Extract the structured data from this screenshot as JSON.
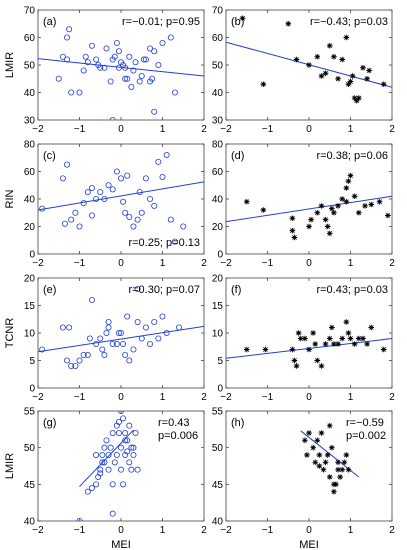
{
  "chart_data": [
    {
      "type": "scatter",
      "panel": "(a)",
      "ylabel": "LMIR",
      "xlabel": "",
      "xlim": [
        -2,
        2
      ],
      "ylim": [
        30,
        70
      ],
      "xticks": [
        -2,
        -1,
        0,
        1,
        2
      ],
      "yticks": [
        30,
        40,
        50,
        60,
        70
      ],
      "show_xticklabels": true,
      "marker": "circle",
      "stat_lines": [
        "r=−0.01; p=0.95"
      ],
      "stat_pos": "top-right",
      "fit": {
        "x1": -2,
        "y1": 52.3,
        "x2": 2,
        "y2": 46.0
      },
      "points": [
        [
          -1.4,
          53
        ],
        [
          -1.3,
          60
        ],
        [
          -1.25,
          63
        ],
        [
          -1.2,
          40
        ],
        [
          -1.0,
          40
        ],
        [
          -0.9,
          48
        ],
        [
          -0.85,
          53
        ],
        [
          -0.7,
          57
        ],
        [
          -0.6,
          52
        ],
        [
          -0.5,
          49
        ],
        [
          -0.4,
          49
        ],
        [
          -0.35,
          56
        ],
        [
          -0.25,
          44
        ],
        [
          -0.2,
          52
        ],
        [
          -0.1,
          58
        ],
        [
          -0.05,
          55
        ],
        [
          0.0,
          51
        ],
        [
          0.05,
          50
        ],
        [
          0.1,
          49
        ],
        [
          0.15,
          45
        ],
        [
          0.2,
          53
        ],
        [
          0.3,
          48
        ],
        [
          0.45,
          44
        ],
        [
          0.5,
          46
        ],
        [
          0.55,
          52
        ],
        [
          0.7,
          56
        ],
        [
          0.8,
          55
        ],
        [
          0.9,
          50
        ],
        [
          1.0,
          58
        ],
        [
          1.3,
          40
        ],
        [
          -1.5,
          45
        ],
        [
          -0.8,
          51
        ],
        [
          -0.15,
          53
        ],
        [
          0.35,
          51
        ],
        [
          0.6,
          52
        ],
        [
          0.75,
          45
        ],
        [
          0.25,
          42
        ],
        [
          -1.3,
          52
        ],
        [
          -0.05,
          49
        ],
        [
          0.8,
          33
        ],
        [
          1.2,
          60
        ],
        [
          0.7,
          44
        ],
        [
          0.1,
          45
        ],
        [
          -0.2,
          30
        ],
        [
          -0.55,
          50
        ]
      ]
    },
    {
      "type": "scatter",
      "panel": "(b)",
      "ylabel": "",
      "xlabel": "",
      "xlim": [
        -2,
        2
      ],
      "ylim": [
        30,
        70
      ],
      "xticks": [
        -2,
        -1,
        0,
        1,
        2
      ],
      "yticks": [
        30,
        40,
        50,
        60,
        70
      ],
      "show_xticklabels": true,
      "marker": "star",
      "stat_lines": [
        "r=−0.43; p=0.03"
      ],
      "stat_pos": "top-right",
      "fit": {
        "x1": -2,
        "y1": 58.3,
        "x2": 2,
        "y2": 41.9
      },
      "points": [
        [
          -1.6,
          67
        ],
        [
          -1.1,
          43
        ],
        [
          -0.5,
          65
        ],
        [
          0.0,
          50
        ],
        [
          0.2,
          53
        ],
        [
          0.3,
          46
        ],
        [
          0.5,
          57
        ],
        [
          0.6,
          53
        ],
        [
          0.7,
          45
        ],
        [
          0.8,
          52
        ],
        [
          0.9,
          60
        ],
        [
          1.0,
          44
        ],
        [
          1.05,
          46
        ],
        [
          1.1,
          38
        ],
        [
          1.2,
          38
        ],
        [
          1.3,
          49
        ],
        [
          1.4,
          45
        ],
        [
          1.8,
          43
        ],
        [
          0.4,
          47
        ],
        [
          -0.3,
          52
        ],
        [
          0.95,
          43
        ],
        [
          1.15,
          37
        ],
        [
          1.45,
          48
        ]
      ]
    },
    {
      "type": "scatter",
      "panel": "(c)",
      "ylabel": "RIN",
      "xlabel": "",
      "xlim": [
        -2,
        2
      ],
      "ylim": [
        0,
        80
      ],
      "xticks": [
        -2,
        -1,
        0,
        1,
        2
      ],
      "yticks": [
        0,
        20,
        40,
        60,
        80
      ],
      "show_xticklabels": true,
      "marker": "circle",
      "stat_lines": [
        "r=0.25; p=0.13"
      ],
      "stat_pos": "bottom-right",
      "fit": {
        "x1": -2,
        "y1": 32.0,
        "x2": 2,
        "y2": 52.5
      },
      "points": [
        [
          -1.9,
          33
        ],
        [
          -1.4,
          55
        ],
        [
          -1.3,
          65
        ],
        [
          -1.2,
          25
        ],
        [
          -1.1,
          30
        ],
        [
          -1.0,
          20
        ],
        [
          -0.9,
          37
        ],
        [
          -0.8,
          45
        ],
        [
          -0.7,
          48
        ],
        [
          -0.6,
          40
        ],
        [
          -0.5,
          45
        ],
        [
          -0.4,
          40
        ],
        [
          -0.3,
          50
        ],
        [
          -0.2,
          47
        ],
        [
          -0.1,
          60
        ],
        [
          0.0,
          55
        ],
        [
          0.05,
          38
        ],
        [
          0.1,
          30
        ],
        [
          0.2,
          27
        ],
        [
          0.3,
          20
        ],
        [
          0.4,
          25
        ],
        [
          0.5,
          30
        ],
        [
          0.6,
          55
        ],
        [
          0.7,
          40
        ],
        [
          0.8,
          35
        ],
        [
          0.9,
          67
        ],
        [
          1.0,
          56
        ],
        [
          1.1,
          72
        ],
        [
          1.2,
          25
        ],
        [
          1.3,
          9
        ],
        [
          -0.7,
          28
        ],
        [
          0.45,
          45
        ],
        [
          -1.35,
          22
        ],
        [
          0.15,
          57
        ],
        [
          1.5,
          20
        ]
      ]
    },
    {
      "type": "scatter",
      "panel": "(d)",
      "ylabel": "",
      "xlabel": "",
      "xlim": [
        -2,
        2
      ],
      "ylim": [
        0,
        80
      ],
      "xticks": [
        -2,
        -1,
        0,
        1,
        2
      ],
      "yticks": [
        0,
        20,
        40,
        60,
        80
      ],
      "show_xticklabels": true,
      "marker": "star",
      "stat_lines": [
        "r=0.38; p=0.06"
      ],
      "stat_pos": "top-right",
      "fit": {
        "x1": -2,
        "y1": 23.5,
        "x2": 2,
        "y2": 42.0
      },
      "points": [
        [
          -1.5,
          38
        ],
        [
          -1.1,
          32
        ],
        [
          -0.4,
          26
        ],
        [
          -0.4,
          17
        ],
        [
          -0.35,
          12
        ],
        [
          0.0,
          20
        ],
        [
          0.05,
          25
        ],
        [
          0.2,
          30
        ],
        [
          0.3,
          35
        ],
        [
          0.4,
          25
        ],
        [
          0.45,
          20
        ],
        [
          0.5,
          15
        ],
        [
          0.55,
          33
        ],
        [
          0.6,
          30
        ],
        [
          0.7,
          35
        ],
        [
          0.8,
          40
        ],
        [
          0.9,
          38
        ],
        [
          1.0,
          57
        ],
        [
          1.1,
          42
        ],
        [
          1.2,
          30
        ],
        [
          1.35,
          35
        ],
        [
          1.5,
          36
        ],
        [
          1.7,
          38
        ],
        [
          1.9,
          28
        ],
        [
          0.9,
          48
        ],
        [
          0.95,
          53
        ]
      ]
    },
    {
      "type": "scatter",
      "panel": "(e)",
      "ylabel": "TCNR",
      "xlabel": "",
      "xlim": [
        -2,
        2
      ],
      "ylim": [
        0,
        20
      ],
      "xticks": [
        -2,
        -1,
        0,
        1,
        2
      ],
      "yticks": [
        0,
        5,
        10,
        15,
        20
      ],
      "show_xticklabels": true,
      "marker": "circle",
      "stat_lines": [
        "r=0.30; p=0.07"
      ],
      "stat_pos": "top-right",
      "fit": {
        "x1": -2,
        "y1": 6.6,
        "x2": 2,
        "y2": 11.2
      },
      "points": [
        [
          -1.9,
          7
        ],
        [
          -1.4,
          11
        ],
        [
          -1.3,
          5
        ],
        [
          -1.25,
          11
        ],
        [
          -1.2,
          4
        ],
        [
          -1.1,
          4
        ],
        [
          -1.0,
          5
        ],
        [
          -0.9,
          6
        ],
        [
          -0.8,
          6
        ],
        [
          -0.7,
          16
        ],
        [
          -0.6,
          8
        ],
        [
          -0.5,
          9
        ],
        [
          -0.45,
          7
        ],
        [
          -0.4,
          6
        ],
        [
          -0.35,
          10
        ],
        [
          -0.3,
          11
        ],
        [
          -0.2,
          8
        ],
        [
          -0.1,
          8
        ],
        [
          -0.05,
          10
        ],
        [
          0.0,
          10
        ],
        [
          0.05,
          8
        ],
        [
          0.1,
          6
        ],
        [
          0.2,
          5
        ],
        [
          0.3,
          7
        ],
        [
          0.4,
          12
        ],
        [
          0.5,
          9
        ],
        [
          0.6,
          11
        ],
        [
          0.7,
          8
        ],
        [
          0.8,
          12
        ],
        [
          0.9,
          9
        ],
        [
          1.0,
          13
        ],
        [
          1.1,
          10
        ],
        [
          -0.3,
          12
        ],
        [
          0.4,
          18
        ],
        [
          -0.75,
          9
        ],
        [
          0.15,
          13
        ],
        [
          1.4,
          11
        ]
      ]
    },
    {
      "type": "scatter",
      "panel": "(f)",
      "ylabel": "",
      "xlabel": "",
      "xlim": [
        -2,
        2
      ],
      "ylim": [
        0,
        20
      ],
      "xticks": [
        -2,
        -1,
        0,
        1,
        2
      ],
      "yticks": [
        0,
        5,
        10,
        15,
        20
      ],
      "show_xticklabels": true,
      "marker": "star",
      "stat_lines": [
        "r=0.43; p=0.03"
      ],
      "stat_pos": "top-right",
      "fit": {
        "x1": -2,
        "y1": 5.4,
        "x2": 2,
        "y2": 9.0
      },
      "points": [
        [
          -1.5,
          7
        ],
        [
          -1.05,
          7
        ],
        [
          -0.4,
          7
        ],
        [
          -0.35,
          5
        ],
        [
          -0.3,
          4
        ],
        [
          -0.25,
          10
        ],
        [
          -0.2,
          9
        ],
        [
          -0.1,
          9
        ],
        [
          0.0,
          7
        ],
        [
          0.1,
          10
        ],
        [
          0.15,
          8
        ],
        [
          0.2,
          5
        ],
        [
          0.3,
          4
        ],
        [
          0.4,
          8
        ],
        [
          0.5,
          9
        ],
        [
          0.6,
          8
        ],
        [
          0.7,
          8
        ],
        [
          0.8,
          9
        ],
        [
          0.9,
          12
        ],
        [
          1.0,
          9
        ],
        [
          1.1,
          8
        ],
        [
          1.2,
          9
        ],
        [
          1.3,
          9
        ],
        [
          1.4,
          8
        ],
        [
          1.5,
          11
        ],
        [
          1.8,
          7
        ],
        [
          0.95,
          10
        ],
        [
          0.55,
          11
        ]
      ]
    },
    {
      "type": "scatter",
      "panel": "(g)",
      "ylabel": "LMIR",
      "xlabel": "MEI",
      "xlim": [
        -2,
        2
      ],
      "ylim": [
        40,
        55
      ],
      "xticks": [
        -2,
        -1,
        0,
        1,
        2
      ],
      "yticks": [
        40,
        45,
        50,
        55
      ],
      "show_xticklabels": true,
      "marker": "circle",
      "stat_lines": [
        "r=0.43",
        "p=0.006"
      ],
      "stat_pos": "top-right",
      "fit": {
        "x1": -1.0,
        "y1": 44.7,
        "x2": 0.3,
        "y2": 52.4
      },
      "points": [
        [
          -1.0,
          40
        ],
        [
          -0.8,
          44
        ],
        [
          -0.7,
          44.5
        ],
        [
          -0.6,
          45
        ],
        [
          -0.55,
          46
        ],
        [
          -0.5,
          46.5
        ],
        [
          -0.5,
          47
        ],
        [
          -0.45,
          48
        ],
        [
          -0.4,
          48
        ],
        [
          -0.4,
          50
        ],
        [
          -0.35,
          51
        ],
        [
          -0.3,
          49
        ],
        [
          -0.3,
          47
        ],
        [
          -0.25,
          50
        ],
        [
          -0.2,
          52
        ],
        [
          -0.2,
          45
        ],
        [
          -0.15,
          48
        ],
        [
          -0.1,
          53
        ],
        [
          -0.1,
          49
        ],
        [
          -0.05,
          52
        ],
        [
          0.0,
          50
        ],
        [
          0.0,
          47
        ],
        [
          0.05,
          54
        ],
        [
          0.05,
          45
        ],
        [
          0.1,
          51
        ],
        [
          0.1,
          49
        ],
        [
          0.15,
          51
        ],
        [
          0.2,
          48
        ],
        [
          0.2,
          53
        ],
        [
          0.25,
          47
        ],
        [
          0.3,
          49
        ],
        [
          0.3,
          50
        ],
        [
          0.35,
          52
        ],
        [
          0.4,
          47
        ],
        [
          -0.6,
          49
        ],
        [
          -0.2,
          41
        ],
        [
          0.0,
          55
        ],
        [
          -0.05,
          53.5
        ],
        [
          0.1,
          52
        ],
        [
          0.25,
          50
        ],
        [
          -0.45,
          49
        ],
        [
          0.15,
          49.5
        ]
      ]
    },
    {
      "type": "scatter",
      "panel": "(h)",
      "ylabel": "",
      "xlabel": "MEI",
      "xlim": [
        -2,
        2
      ],
      "ylim": [
        40,
        55
      ],
      "xticks": [
        -2,
        -1,
        0,
        1,
        2
      ],
      "yticks": [
        40,
        45,
        50,
        55
      ],
      "show_xticklabels": true,
      "marker": "star",
      "stat_lines": [
        "r=−0.59",
        "p=0.002"
      ],
      "stat_pos": "top-right",
      "fit": {
        "x1": -0.2,
        "y1": 52.3,
        "x2": 1.2,
        "y2": 46.0
      },
      "points": [
        [
          -0.1,
          51
        ],
        [
          0.0,
          52
        ],
        [
          0.1,
          50
        ],
        [
          0.15,
          48
        ],
        [
          0.2,
          51
        ],
        [
          0.25,
          49
        ],
        [
          0.3,
          52
        ],
        [
          0.35,
          47
        ],
        [
          0.4,
          48
        ],
        [
          0.45,
          49
        ],
        [
          0.5,
          46
        ],
        [
          0.5,
          53
        ],
        [
          0.55,
          50
        ],
        [
          0.6,
          45
        ],
        [
          0.6,
          44
        ],
        [
          0.65,
          45
        ],
        [
          0.7,
          47
        ],
        [
          0.7,
          48
        ],
        [
          0.75,
          46
        ],
        [
          0.8,
          47
        ],
        [
          0.85,
          48
        ],
        [
          0.9,
          49
        ],
        [
          0.95,
          47
        ],
        [
          -0.05,
          49
        ],
        [
          0.25,
          47.5
        ]
      ]
    }
  ]
}
